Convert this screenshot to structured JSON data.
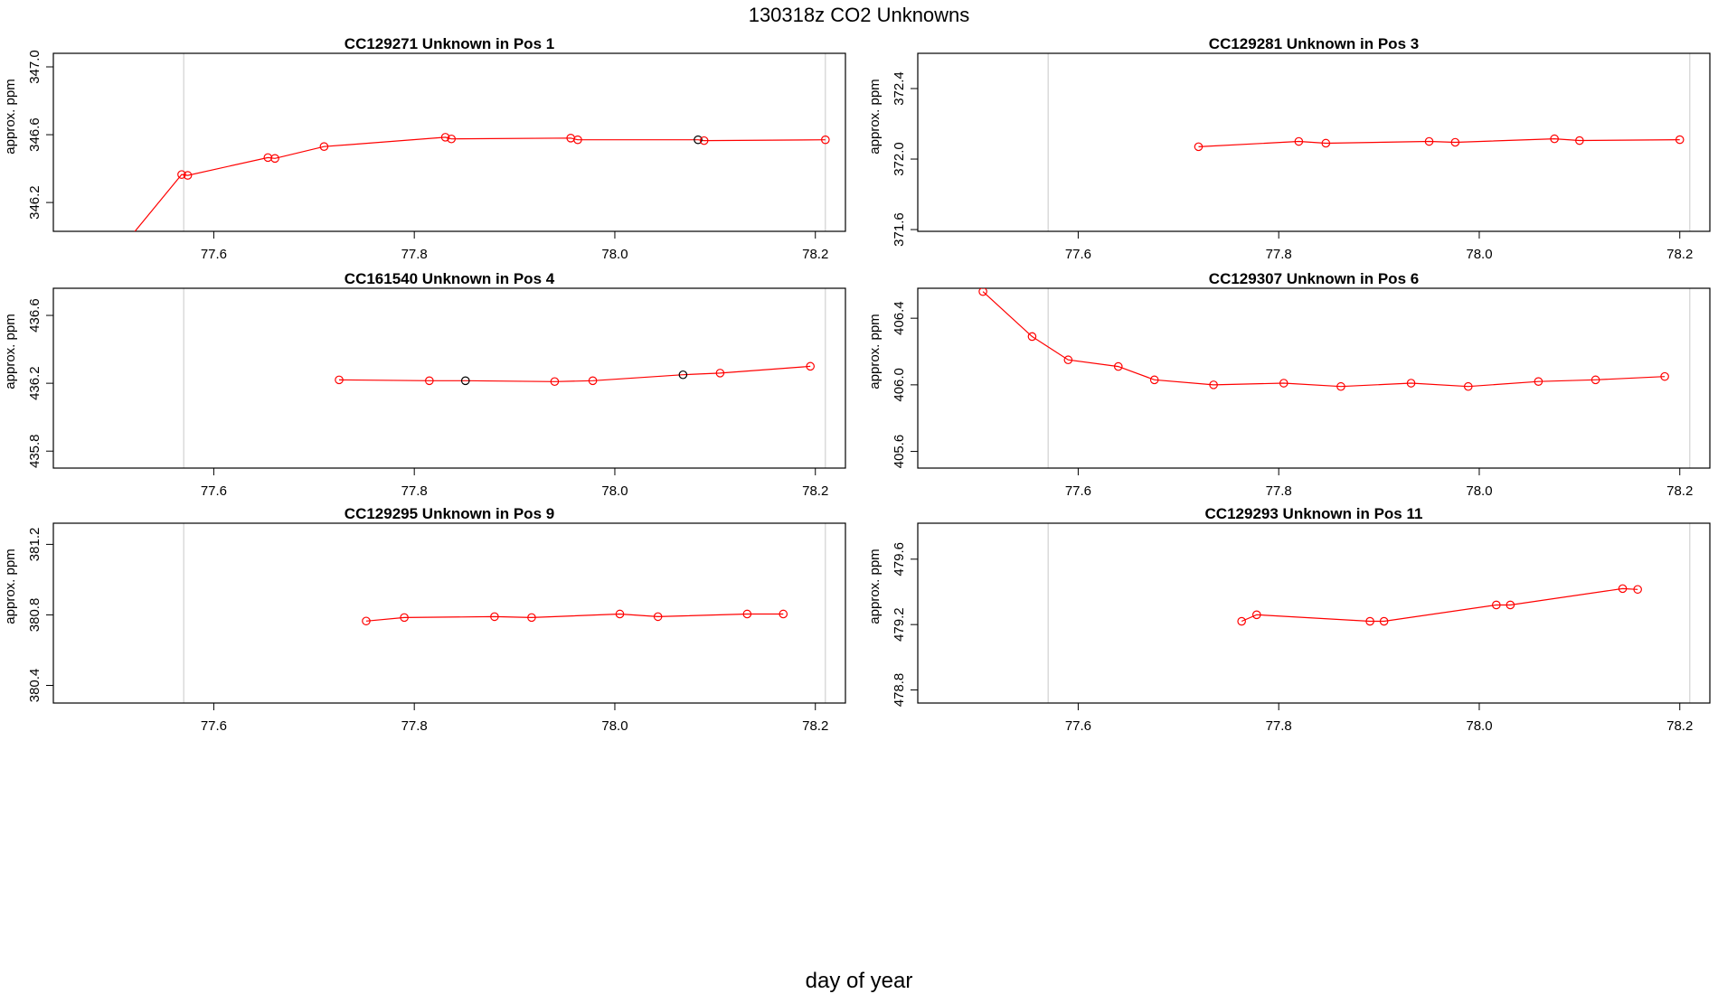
{
  "page": {
    "title": "130318z  CO2 Unknowns",
    "xlabel": "day of year"
  },
  "colors": {
    "line": "#ff0000",
    "highlight": "#000000",
    "vline": "#c8c8c8",
    "frame": "#000000"
  },
  "shared": {
    "xlim": [
      77.44,
      78.23
    ],
    "xticks": [
      77.6,
      77.8,
      78.0,
      78.2
    ],
    "vlines": [
      77.57,
      78.21
    ],
    "ylabel": "approx. ppm"
  },
  "chart_data": [
    {
      "type": "line",
      "title": "CC129271    Unknown in Pos 1",
      "ylabel": "approx. ppm",
      "ylim": [
        346.03,
        347.08
      ],
      "yticks": [
        346.2,
        346.6,
        347.0
      ],
      "ytick_labels": [
        "346.2",
        "346.6",
        "347.0"
      ],
      "line_start": [
        77.52,
        346.02
      ],
      "points": [
        {
          "x": 77.568,
          "y": 346.365
        },
        {
          "x": 77.574,
          "y": 346.36
        },
        {
          "x": 77.654,
          "y": 346.465
        },
        {
          "x": 77.661,
          "y": 346.46
        },
        {
          "x": 77.71,
          "y": 346.53
        },
        {
          "x": 77.831,
          "y": 346.585
        },
        {
          "x": 77.837,
          "y": 346.575
        },
        {
          "x": 77.956,
          "y": 346.58
        },
        {
          "x": 77.963,
          "y": 346.57
        },
        {
          "x": 78.083,
          "y": 346.57,
          "highlight": true
        },
        {
          "x": 78.089,
          "y": 346.565
        },
        {
          "x": 78.21,
          "y": 346.57
        }
      ]
    },
    {
      "type": "line",
      "title": "CC129281    Unknown in Pos 3",
      "ylabel": "approx. ppm",
      "ylim": [
        371.59,
        372.6
      ],
      "yticks": [
        371.6,
        372.0,
        372.4
      ],
      "ytick_labels": [
        "371.6",
        "372.0",
        "372.4"
      ],
      "points": [
        {
          "x": 77.72,
          "y": 372.07
        },
        {
          "x": 77.82,
          "y": 372.1
        },
        {
          "x": 77.847,
          "y": 372.09
        },
        {
          "x": 77.95,
          "y": 372.1
        },
        {
          "x": 77.976,
          "y": 372.095
        },
        {
          "x": 78.075,
          "y": 372.115
        },
        {
          "x": 78.1,
          "y": 372.105
        },
        {
          "x": 78.2,
          "y": 372.11
        }
      ]
    },
    {
      "type": "line",
      "title": "CC161540    Unknown in Pos 4",
      "ylabel": "approx. ppm",
      "ylim": [
        435.7,
        436.76
      ],
      "yticks": [
        435.8,
        436.2,
        436.6
      ],
      "ytick_labels": [
        "435.8",
        "436.2",
        "436.6"
      ],
      "points": [
        {
          "x": 77.725,
          "y": 436.22
        },
        {
          "x": 77.815,
          "y": 436.215
        },
        {
          "x": 77.851,
          "y": 436.215,
          "highlight": true
        },
        {
          "x": 77.94,
          "y": 436.21
        },
        {
          "x": 77.978,
          "y": 436.215
        },
        {
          "x": 78.068,
          "y": 436.25,
          "highlight": true
        },
        {
          "x": 78.105,
          "y": 436.26
        },
        {
          "x": 78.195,
          "y": 436.3
        }
      ]
    },
    {
      "type": "line",
      "title": "CC129307    Unknown in Pos 6",
      "ylabel": "approx. ppm",
      "ylim": [
        405.5,
        406.58
      ],
      "yticks": [
        405.6,
        406.0,
        406.4
      ],
      "ytick_labels": [
        "405.6",
        "406.0",
        "406.4"
      ],
      "points": [
        {
          "x": 77.505,
          "y": 406.56
        },
        {
          "x": 77.554,
          "y": 406.29
        },
        {
          "x": 77.59,
          "y": 406.15
        },
        {
          "x": 77.64,
          "y": 406.11
        },
        {
          "x": 77.676,
          "y": 406.03
        },
        {
          "x": 77.735,
          "y": 406.0
        },
        {
          "x": 77.805,
          "y": 406.01
        },
        {
          "x": 77.862,
          "y": 405.99
        },
        {
          "x": 77.932,
          "y": 406.01
        },
        {
          "x": 77.989,
          "y": 405.99
        },
        {
          "x": 78.059,
          "y": 406.02
        },
        {
          "x": 78.116,
          "y": 406.03
        },
        {
          "x": 78.185,
          "y": 406.05
        }
      ]
    },
    {
      "type": "line",
      "title": "CC129295    Unknown in Pos 9",
      "ylabel": "approx. ppm",
      "ylim": [
        380.3,
        381.32
      ],
      "yticks": [
        380.4,
        380.8,
        381.2
      ],
      "ytick_labels": [
        "380.4",
        "380.8",
        "381.2"
      ],
      "points": [
        {
          "x": 77.752,
          "y": 380.765
        },
        {
          "x": 77.79,
          "y": 380.785
        },
        {
          "x": 77.88,
          "y": 380.79
        },
        {
          "x": 77.917,
          "y": 380.785
        },
        {
          "x": 78.005,
          "y": 380.805
        },
        {
          "x": 78.043,
          "y": 380.79
        },
        {
          "x": 78.132,
          "y": 380.805
        },
        {
          "x": 78.168,
          "y": 380.805
        }
      ]
    },
    {
      "type": "line",
      "title": "CC129293    Unknown in Pos 11",
      "ylabel": "approx. ppm",
      "ylim": [
        478.72,
        479.82
      ],
      "yticks": [
        478.8,
        479.2,
        479.6
      ],
      "ytick_labels": [
        "478.8",
        "479.2",
        "479.6"
      ],
      "points": [
        {
          "x": 77.763,
          "y": 479.22
        },
        {
          "x": 77.778,
          "y": 479.26
        },
        {
          "x": 77.891,
          "y": 479.22
        },
        {
          "x": 77.905,
          "y": 479.22
        },
        {
          "x": 78.017,
          "y": 479.32
        },
        {
          "x": 78.031,
          "y": 479.32
        },
        {
          "x": 78.143,
          "y": 479.42
        },
        {
          "x": 78.158,
          "y": 479.415
        }
      ]
    }
  ]
}
